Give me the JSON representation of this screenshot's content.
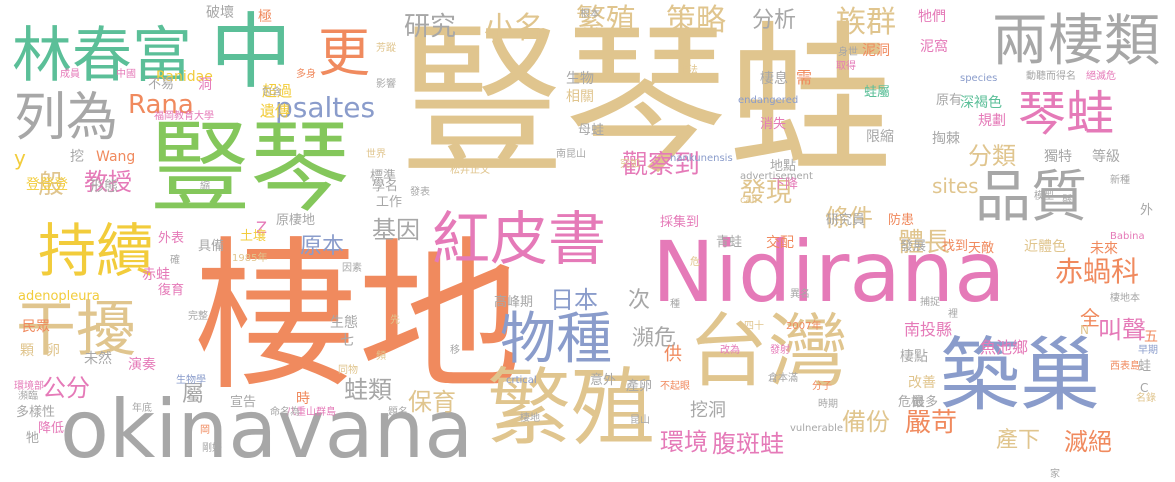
{
  "palette": {
    "tan": "#e0c58e",
    "green": "#84c75b",
    "teal": "#5bbf98",
    "coral": "#f08a5e",
    "pink": "#e57ab8",
    "blue": "#8a9ccb",
    "gray": "#a7a7a7",
    "yellow": "#f2cc3b"
  },
  "words": [
    "豎琴蛙",
    "棲地",
    "Nidirana",
    "豎琴",
    "okinavana",
    "築巢",
    "繁殖",
    "台灣",
    "中",
    "林春富",
    "兩棲類",
    "列為",
    "干擾",
    "品質",
    "物種",
    "紅皮書",
    "持續",
    "琴蛙",
    "更",
    "繁殖",
    "策略",
    "分析",
    "族群",
    "研究",
    "小名",
    "psaltes",
    "Rana",
    "教授",
    "觀察到",
    "般",
    "發現",
    "條件",
    "體長",
    "赤蝸科",
    "分類",
    "日本",
    "次",
    "原本",
    "基因",
    "瀕危",
    "公分",
    "保育",
    "蛙類",
    "環境",
    "腹斑蛙",
    "備份",
    "嚴苛",
    "產下",
    "滅絕",
    "叫聲",
    "南投縣",
    "魚池鄉",
    "全",
    "sites",
    "屬",
    "adenopleura",
    "赤蛙",
    "Ranidae",
    "破壞",
    "挖",
    "Wang",
    "形態",
    "登登登",
    "y",
    "生物",
    "相關",
    "遺傳",
    "超過",
    "不易",
    "洞",
    "極",
    "棲息",
    "蛙屬",
    "深褐色",
    "規劃",
    "原有",
    "掏棘",
    "獨特",
    "等級",
    "Z",
    "原棲地",
    "土壤",
    "具備",
    "外表",
    "復育",
    "演奏",
    "多樣性",
    "降低",
    "牠",
    "顆",
    "卵",
    "未然",
    "民眾",
    "宣告",
    "時",
    "生態",
    "七",
    "供",
    "意外",
    "產卵",
    "挖洞",
    "改善",
    "危機",
    "最多",
    "天敵",
    "近體色",
    "未來",
    "棲點",
    "蛙",
    "交配",
    "青蛙",
    "採集到",
    "地點",
    "下降",
    "工作",
    "標準",
    "學名",
    "高峰期",
    "研究員",
    "防患",
    "發展",
    "找到",
    "需",
    "母蛙",
    "消失",
    "限縮",
    "牠們",
    "泥窩",
    "泥洞",
    "芳蹤",
    "作法",
    "身世",
    "取得",
    "成員",
    "中國",
    "多身",
    "影響",
    "福岡教育大學",
    "世界",
    "南昆山",
    "松井正文",
    "nankunensis",
    "advertisement",
    "call",
    "species",
    "endangered",
    "vulnerable",
    "crtical",
    "四十",
    "2007年",
    "倉本滿",
    "分子",
    "動聽而得名",
    "絕滅危",
    "新種",
    "西表島",
    "八重山群島",
    "棲地本",
    "Babina",
    "1985年",
    "因素",
    "包含",
    "發表",
    "完整",
    "命名為",
    "岡",
    "生物學",
    "年底",
    "題名",
    "同物",
    "剛好",
    "時期",
    "瀕臨",
    "環境部",
    "裡",
    "五",
    "外",
    "C",
    "N",
    "早期",
    "名錄",
    "究如",
    "縮",
    "異名",
    "昆山",
    "發射",
    "改為",
    "不起眼",
    "危",
    "先",
    "頻",
    "移",
    "種",
    "棲地",
    "確",
    "根本",
    "模型",
    "捕捉",
    "縣",
    "家"
  ]
}
